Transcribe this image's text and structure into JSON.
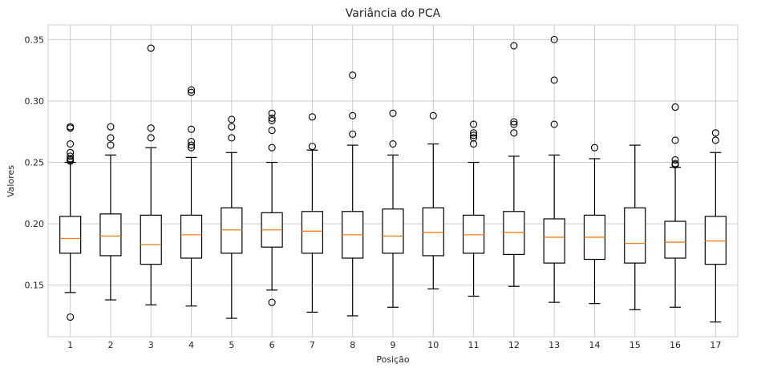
{
  "chart_data": {
    "type": "box",
    "title": "Variância do PCA",
    "xlabel": "Posição",
    "ylabel": "Valores",
    "ylim": [
      0.108,
      0.362
    ],
    "yticks": [
      "0.15",
      "0.20",
      "0.25",
      "0.30",
      "0.35"
    ],
    "ytick_values": [
      0.15,
      0.2,
      0.25,
      0.3,
      0.35
    ],
    "grid": true,
    "colors": {
      "median": "#ff7f0e",
      "box": "#000000",
      "grid": "#cccccc"
    },
    "boxes": [
      {
        "label": "1",
        "q1": 0.176,
        "median": 0.188,
        "q3": 0.206,
        "whislo": 0.144,
        "whishi": 0.25,
        "fliers": [
          0.279,
          0.278,
          0.265,
          0.258,
          0.255,
          0.253,
          0.252,
          0.251,
          0.124
        ]
      },
      {
        "label": "2",
        "q1": 0.174,
        "median": 0.19,
        "q3": 0.208,
        "whislo": 0.138,
        "whishi": 0.256,
        "fliers": [
          0.279,
          0.27,
          0.264
        ]
      },
      {
        "label": "3",
        "q1": 0.167,
        "median": 0.183,
        "q3": 0.207,
        "whislo": 0.134,
        "whishi": 0.262,
        "fliers": [
          0.343,
          0.278,
          0.27
        ]
      },
      {
        "label": "4",
        "q1": 0.172,
        "median": 0.191,
        "q3": 0.207,
        "whislo": 0.133,
        "whishi": 0.254,
        "fliers": [
          0.309,
          0.307,
          0.277,
          0.267,
          0.264,
          0.262
        ]
      },
      {
        "label": "5",
        "q1": 0.176,
        "median": 0.195,
        "q3": 0.213,
        "whislo": 0.123,
        "whishi": 0.258,
        "fliers": [
          0.285,
          0.279,
          0.27
        ]
      },
      {
        "label": "6",
        "q1": 0.181,
        "median": 0.195,
        "q3": 0.209,
        "whislo": 0.146,
        "whishi": 0.25,
        "fliers": [
          0.29,
          0.286,
          0.284,
          0.276,
          0.262,
          0.136
        ]
      },
      {
        "label": "7",
        "q1": 0.176,
        "median": 0.194,
        "q3": 0.21,
        "whislo": 0.128,
        "whishi": 0.26,
        "fliers": [
          0.287,
          0.263
        ]
      },
      {
        "label": "8",
        "q1": 0.172,
        "median": 0.191,
        "q3": 0.21,
        "whislo": 0.125,
        "whishi": 0.264,
        "fliers": [
          0.321,
          0.288,
          0.273
        ]
      },
      {
        "label": "9",
        "q1": 0.176,
        "median": 0.19,
        "q3": 0.212,
        "whislo": 0.132,
        "whishi": 0.256,
        "fliers": [
          0.29,
          0.265
        ]
      },
      {
        "label": "10",
        "q1": 0.174,
        "median": 0.193,
        "q3": 0.213,
        "whislo": 0.147,
        "whishi": 0.265,
        "fliers": [
          0.288
        ]
      },
      {
        "label": "11",
        "q1": 0.176,
        "median": 0.191,
        "q3": 0.207,
        "whislo": 0.141,
        "whishi": 0.25,
        "fliers": [
          0.281,
          0.274,
          0.272,
          0.27,
          0.265
        ]
      },
      {
        "label": "12",
        "q1": 0.175,
        "median": 0.193,
        "q3": 0.21,
        "whislo": 0.149,
        "whishi": 0.255,
        "fliers": [
          0.345,
          0.283,
          0.281,
          0.274
        ]
      },
      {
        "label": "13",
        "q1": 0.168,
        "median": 0.189,
        "q3": 0.204,
        "whislo": 0.136,
        "whishi": 0.256,
        "fliers": [
          0.35,
          0.317,
          0.281
        ]
      },
      {
        "label": "14",
        "q1": 0.171,
        "median": 0.189,
        "q3": 0.207,
        "whislo": 0.135,
        "whishi": 0.253,
        "fliers": [
          0.262
        ]
      },
      {
        "label": "15",
        "q1": 0.168,
        "median": 0.184,
        "q3": 0.213,
        "whislo": 0.13,
        "whishi": 0.264,
        "fliers": []
      },
      {
        "label": "16",
        "q1": 0.172,
        "median": 0.185,
        "q3": 0.202,
        "whislo": 0.132,
        "whishi": 0.246,
        "fliers": [
          0.295,
          0.268,
          0.252,
          0.249,
          0.248
        ]
      },
      {
        "label": "17",
        "q1": 0.167,
        "median": 0.186,
        "q3": 0.206,
        "whislo": 0.12,
        "whishi": 0.258,
        "fliers": [
          0.274,
          0.268
        ]
      }
    ]
  }
}
